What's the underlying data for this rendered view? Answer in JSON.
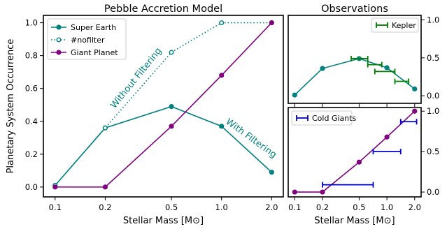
{
  "chart_data": [
    {
      "type": "line",
      "title": "Pebble Accretion Model",
      "xlabel": "Stellar Mass [M⊙]",
      "ylabel": "Planetary System Occurrence",
      "xscale": "log",
      "xlim": [
        0.085,
        2.35
      ],
      "ylim": [
        -0.06,
        1.045
      ],
      "xticks": [
        0.1,
        0.2,
        0.5,
        1.0,
        2.0
      ],
      "xtick_labels": [
        "0.1",
        "0.2",
        "0.5",
        "1.0",
        "2.0"
      ],
      "yticks": [
        0.0,
        0.2,
        0.4,
        0.6,
        0.8,
        1.0
      ],
      "ytick_labels": [
        "0.0",
        "0.2",
        "0.4",
        "0.6",
        "0.8",
        "1.0"
      ],
      "grid": false,
      "legend": "upper-left",
      "x": [
        0.1,
        0.2,
        0.5,
        1.0,
        2.0
      ],
      "series": [
        {
          "name": "Super Earth",
          "color": "#008080",
          "style": "solid",
          "marker": "filled-circle",
          "values": [
            0.01,
            0.36,
            0.49,
            0.37,
            0.09
          ]
        },
        {
          "name": "#nofilter",
          "color": "#008080",
          "style": "dotted",
          "marker": "open-circle",
          "values": [
            0.01,
            0.36,
            0.82,
            1.0,
            1.0
          ]
        },
        {
          "name": "Giant Planet",
          "color": "#800080",
          "style": "solid",
          "marker": "filled-circle",
          "values": [
            0.0,
            0.0,
            0.37,
            0.68,
            1.0
          ]
        }
      ],
      "annotations": [
        {
          "text": "Without Filtering",
          "color": "#008080"
        },
        {
          "text": "With Filtering",
          "color": "#008080"
        }
      ]
    },
    {
      "type": "line",
      "title": "Observations",
      "xscale": "log",
      "xlim": [
        0.085,
        2.35
      ],
      "ylim": [
        -0.1,
        1.06
      ],
      "yaxis_position": "right",
      "xticks": [
        0.1,
        0.2,
        0.5,
        1.0,
        2.0
      ],
      "yticks": [
        0.0,
        0.5,
        1.0
      ],
      "ytick_labels": [
        "0.0",
        "0.5",
        "1.0"
      ],
      "legend": "upper-right",
      "x": [
        0.1,
        0.2,
        0.5,
        1.0,
        2.0
      ],
      "series": [
        {
          "color": "#008080",
          "style": "solid",
          "marker": "filled-circle",
          "values": [
            0.01,
            0.36,
            0.49,
            0.37,
            0.09
          ]
        }
      ],
      "errorbars": {
        "name": "Kepler",
        "color": "#008000",
        "points": [
          {
            "y": 0.49,
            "xmin": 0.41,
            "xmax": 0.62
          },
          {
            "y": 0.41,
            "xmin": 0.62,
            "xmax": 0.88
          },
          {
            "y": 0.32,
            "xmin": 0.74,
            "xmax": 1.22
          },
          {
            "y": 0.19,
            "xmin": 1.22,
            "xmax": 1.72
          }
        ]
      }
    },
    {
      "type": "line",
      "xlabel": "Stellar Mass [M⊙]",
      "xscale": "log",
      "xlim": [
        0.085,
        2.35
      ],
      "ylim": [
        -0.06,
        1.045
      ],
      "yaxis_position": "right",
      "xticks": [
        0.1,
        0.2,
        0.5,
        1.0,
        2.0
      ],
      "xtick_labels": [
        "0.1",
        "0.2",
        "0.5",
        "1.0",
        "2.0"
      ],
      "yticks": [
        0.0,
        0.5,
        1.0
      ],
      "ytick_labels": [
        "0.0",
        "0.5",
        "1.0"
      ],
      "legend": "upper-left",
      "x": [
        0.1,
        0.2,
        0.5,
        1.0,
        2.0
      ],
      "series": [
        {
          "color": "#800080",
          "style": "solid",
          "marker": "filled-circle",
          "values": [
            0.0,
            0.0,
            0.37,
            0.68,
            1.0
          ]
        }
      ],
      "errorbars": {
        "name": "Cold Giants",
        "color": "#0000cc",
        "points": [
          {
            "y": 0.09,
            "xmin": 0.2,
            "xmax": 0.71
          },
          {
            "y": 0.5,
            "xmin": 0.71,
            "xmax": 1.41
          },
          {
            "y": 0.87,
            "xmin": 1.41,
            "xmax": 2.1
          }
        ]
      }
    }
  ]
}
